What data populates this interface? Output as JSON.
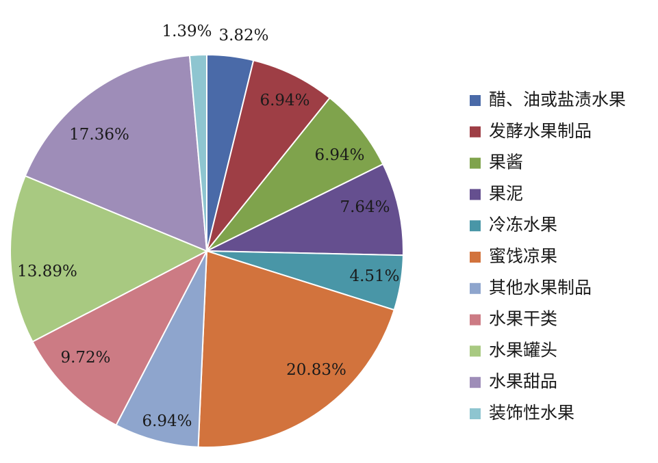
{
  "chart_data": {
    "type": "pie",
    "legend_position": "right",
    "slices": [
      {
        "name": "醋、油或盐渍水果",
        "value": 3.82,
        "label": "3.82%",
        "color": "#4a6aa8"
      },
      {
        "name": "发酵水果制品",
        "value": 6.94,
        "label": "6.94%",
        "color": "#9e3e45"
      },
      {
        "name": "果酱",
        "value": 6.94,
        "label": "6.94%",
        "color": "#7fa34c"
      },
      {
        "name": "果泥",
        "value": 7.64,
        "label": "7.64%",
        "color": "#654f8f"
      },
      {
        "name": "冷冻水果",
        "value": 4.51,
        "label": "4.51%",
        "color": "#4996a7"
      },
      {
        "name": "蜜饯凉果",
        "value": 20.83,
        "label": "20.83%",
        "color": "#d2733d"
      },
      {
        "name": "其他水果制品",
        "value": 6.94,
        "label": "6.94%",
        "color": "#8ea5cd"
      },
      {
        "name": "水果干类",
        "value": 9.72,
        "label": "9.72%",
        "color": "#cc7b84"
      },
      {
        "name": "水果罐头",
        "value": 13.89,
        "label": "13.89%",
        "color": "#a8c981"
      },
      {
        "name": "水果甜品",
        "value": 17.36,
        "label": "17.36%",
        "color": "#9e8db8"
      },
      {
        "name": "装饰性水果",
        "value": 1.39,
        "label": "1.39%",
        "color": "#8ec5d0"
      }
    ]
  }
}
